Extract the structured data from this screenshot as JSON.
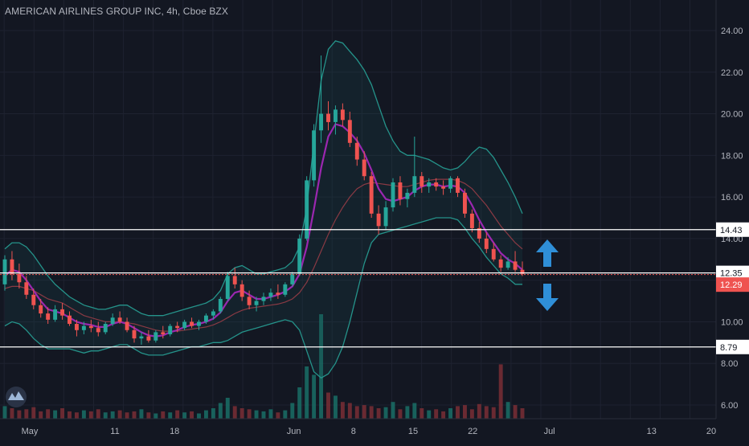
{
  "header": {
    "title": "AMERICAN AIRLINES GROUP INC, 4h, Cboe BZX"
  },
  "chart_data": {
    "type": "candlestick",
    "title": "AMERICAN AIRLINES GROUP INC, 4h, Cboe BZX",
    "ylim": [
      5.3,
      25.0
    ],
    "y_ticks": [
      "6.00",
      "8.00",
      "10.00",
      "12.00",
      "14.00",
      "16.00",
      "18.00",
      "20.00",
      "22.00",
      "24.00"
    ],
    "x_ticks": [
      {
        "label": "May",
        "day": 1
      },
      {
        "label": "11",
        "day": 11
      },
      {
        "label": "18",
        "day": 18
      },
      {
        "label": "Jun",
        "day": 32
      },
      {
        "label": "8",
        "day": 39
      },
      {
        "label": "15",
        "day": 46
      },
      {
        "label": "22",
        "day": 53
      },
      {
        "label": "Jul",
        "day": 62
      },
      {
        "label": "13",
        "day": 74
      },
      {
        "label": "20",
        "day": 81
      }
    ],
    "price_levels": [
      {
        "label": "14.43",
        "value": 14.43,
        "style": "solid"
      },
      {
        "label": "12.35",
        "value": 12.35,
        "style": "dashed"
      },
      {
        "label": "8.79",
        "value": 8.79,
        "style": "solid"
      }
    ],
    "last_price": {
      "label": "12.29",
      "value": 12.29
    },
    "candles": [
      [
        11.8,
        13.2,
        11.5,
        13.0
      ],
      [
        13.0,
        13.4,
        12.0,
        12.3
      ],
      [
        12.3,
        12.8,
        11.6,
        11.9
      ],
      [
        11.9,
        12.2,
        11.1,
        11.3
      ],
      [
        11.3,
        11.6,
        10.6,
        10.8
      ],
      [
        10.8,
        11.1,
        10.2,
        10.4
      ],
      [
        10.4,
        10.7,
        9.9,
        10.1
      ],
      [
        10.1,
        10.8,
        10.0,
        10.6
      ],
      [
        10.6,
        10.9,
        10.1,
        10.3
      ],
      [
        10.3,
        10.5,
        9.8,
        9.9
      ],
      [
        9.9,
        10.1,
        9.3,
        9.6
      ],
      [
        9.6,
        10.0,
        9.4,
        9.8
      ],
      [
        9.8,
        10.1,
        9.5,
        9.7
      ],
      [
        9.7,
        10.0,
        9.3,
        9.5
      ],
      [
        9.5,
        10.0,
        9.4,
        9.9
      ],
      [
        9.9,
        10.4,
        9.8,
        10.2
      ],
      [
        10.2,
        10.5,
        9.9,
        10.0
      ],
      [
        10.0,
        10.2,
        9.5,
        9.6
      ],
      [
        9.6,
        9.8,
        9.0,
        9.2
      ],
      [
        9.2,
        9.5,
        8.9,
        9.3
      ],
      [
        9.3,
        9.6,
        9.0,
        9.1
      ],
      [
        9.1,
        9.6,
        9.0,
        9.5
      ],
      [
        9.5,
        9.8,
        9.2,
        9.4
      ],
      [
        9.4,
        9.9,
        9.3,
        9.8
      ],
      [
        9.8,
        10.0,
        9.5,
        9.7
      ],
      [
        9.7,
        10.1,
        9.6,
        10.0
      ],
      [
        10.0,
        10.2,
        9.7,
        9.8
      ],
      [
        9.8,
        10.1,
        9.6,
        10.0
      ],
      [
        10.0,
        10.4,
        9.9,
        10.3
      ],
      [
        10.3,
        10.6,
        10.1,
        10.5
      ],
      [
        10.5,
        11.2,
        10.4,
        11.1
      ],
      [
        11.1,
        12.4,
        11.0,
        12.2
      ],
      [
        12.2,
        12.6,
        11.6,
        11.8
      ],
      [
        11.8,
        12.0,
        11.0,
        11.2
      ],
      [
        11.2,
        11.5,
        10.6,
        10.8
      ],
      [
        10.8,
        11.2,
        10.5,
        11.0
      ],
      [
        11.0,
        11.4,
        10.8,
        11.2
      ],
      [
        11.2,
        11.6,
        11.0,
        11.4
      ],
      [
        11.4,
        11.8,
        11.1,
        11.3
      ],
      [
        11.3,
        11.9,
        11.2,
        11.8
      ],
      [
        11.8,
        12.4,
        11.7,
        12.3
      ],
      [
        12.3,
        14.2,
        12.2,
        14.0
      ],
      [
        14.0,
        17.0,
        13.9,
        16.8
      ],
      [
        16.8,
        19.5,
        16.5,
        19.2
      ],
      [
        19.2,
        22.8,
        18.6,
        20.0
      ],
      [
        20.0,
        20.6,
        19.2,
        19.6
      ],
      [
        19.6,
        20.4,
        19.0,
        20.2
      ],
      [
        20.2,
        20.5,
        19.4,
        19.7
      ],
      [
        19.7,
        20.1,
        18.4,
        18.6
      ],
      [
        18.6,
        18.9,
        17.5,
        17.8
      ],
      [
        17.8,
        18.2,
        16.8,
        17.0
      ],
      [
        17.0,
        17.2,
        15.0,
        15.2
      ],
      [
        15.2,
        15.6,
        14.2,
        14.6
      ],
      [
        14.6,
        15.8,
        14.4,
        15.5
      ],
      [
        15.5,
        16.9,
        15.3,
        16.7
      ],
      [
        16.7,
        17.0,
        15.6,
        15.9
      ],
      [
        15.9,
        16.4,
        15.5,
        16.2
      ],
      [
        16.2,
        18.9,
        16.0,
        17.0
      ],
      [
        17.0,
        17.2,
        16.2,
        16.5
      ],
      [
        16.5,
        16.9,
        16.2,
        16.7
      ],
      [
        16.7,
        16.9,
        16.3,
        16.5
      ],
      [
        16.5,
        16.8,
        16.1,
        16.4
      ],
      [
        16.4,
        17.0,
        16.2,
        16.9
      ],
      [
        16.9,
        17.0,
        16.0,
        16.2
      ],
      [
        16.2,
        16.4,
        15.0,
        15.2
      ],
      [
        15.2,
        15.4,
        14.3,
        14.5
      ],
      [
        14.5,
        14.8,
        13.8,
        14.0
      ],
      [
        14.0,
        14.3,
        13.3,
        13.5
      ],
      [
        13.5,
        13.8,
        12.9,
        13.0
      ],
      [
        13.0,
        13.2,
        12.4,
        12.6
      ],
      [
        12.6,
        13.1,
        12.5,
        12.9
      ],
      [
        12.9,
        13.4,
        12.4,
        12.5
      ],
      [
        12.5,
        12.9,
        12.2,
        12.3
      ]
    ],
    "ma_fast": [
      12.2,
      12.5,
      12.4,
      12.0,
      11.5,
      11.0,
      10.6,
      10.5,
      10.4,
      10.2,
      10.0,
      9.9,
      9.85,
      9.75,
      9.75,
      9.9,
      10.0,
      9.9,
      9.7,
      9.5,
      9.35,
      9.3,
      9.35,
      9.5,
      9.6,
      9.75,
      9.85,
      9.9,
      10.0,
      10.15,
      10.45,
      11.0,
      11.4,
      11.5,
      11.3,
      11.1,
      11.1,
      11.2,
      11.3,
      11.45,
      11.7,
      12.3,
      13.6,
      15.4,
      17.4,
      18.9,
      19.5,
      19.4,
      19.1,
      18.7,
      18.1,
      17.3,
      16.4,
      15.9,
      15.8,
      15.9,
      16.0,
      16.3,
      16.5,
      16.6,
      16.6,
      16.5,
      16.55,
      16.5,
      16.2,
      15.6,
      14.9,
      14.3,
      13.8,
      13.3,
      13.0,
      12.8,
      12.5
    ],
    "ma_slow": [
      11.6,
      11.7,
      11.7,
      11.6,
      11.5,
      11.3,
      11.1,
      11.0,
      10.9,
      10.7,
      10.5,
      10.3,
      10.2,
      10.1,
      10.0,
      10.0,
      10.0,
      9.95,
      9.9,
      9.8,
      9.7,
      9.6,
      9.55,
      9.55,
      9.55,
      9.6,
      9.65,
      9.7,
      9.75,
      9.85,
      10.0,
      10.2,
      10.4,
      10.55,
      10.65,
      10.7,
      10.75,
      10.8,
      10.85,
      10.95,
      11.1,
      11.4,
      11.9,
      12.6,
      13.4,
      14.2,
      14.9,
      15.5,
      16.0,
      16.4,
      16.6,
      16.7,
      16.65,
      16.6,
      16.55,
      16.5,
      16.5,
      16.6,
      16.7,
      16.8,
      16.85,
      16.85,
      16.85,
      16.8,
      16.65,
      16.4,
      16.0,
      15.6,
      15.1,
      14.6,
      14.2,
      13.8,
      13.5
    ],
    "bb_upper": [
      13.5,
      13.8,
      13.8,
      13.6,
      13.2,
      12.7,
      12.2,
      11.8,
      11.5,
      11.2,
      11.0,
      10.8,
      10.7,
      10.6,
      10.6,
      10.7,
      10.8,
      10.8,
      10.6,
      10.4,
      10.3,
      10.3,
      10.3,
      10.4,
      10.5,
      10.6,
      10.7,
      10.8,
      10.9,
      11.1,
      11.5,
      12.3,
      12.6,
      12.7,
      12.5,
      12.3,
      12.3,
      12.4,
      12.5,
      12.6,
      12.9,
      13.6,
      15.5,
      18.6,
      21.6,
      23.1,
      23.5,
      23.4,
      23.0,
      22.6,
      22.1,
      21.4,
      20.4,
      19.4,
      18.7,
      18.2,
      18.0,
      18.0,
      17.9,
      17.8,
      17.6,
      17.4,
      17.3,
      17.4,
      17.7,
      18.1,
      18.4,
      18.3,
      17.9,
      17.3,
      16.7,
      16.0,
      15.2
    ],
    "bb_lower": [
      9.8,
      10.0,
      9.9,
      9.6,
      9.2,
      8.9,
      8.7,
      8.7,
      8.7,
      8.7,
      8.6,
      8.5,
      8.6,
      8.6,
      8.7,
      8.8,
      8.9,
      8.9,
      8.7,
      8.5,
      8.4,
      8.4,
      8.4,
      8.5,
      8.6,
      8.7,
      8.8,
      8.8,
      8.9,
      9.0,
      9.0,
      9.1,
      9.3,
      9.5,
      9.6,
      9.7,
      9.8,
      9.9,
      10.0,
      10.1,
      10.0,
      9.6,
      8.6,
      7.6,
      7.3,
      7.5,
      8.0,
      8.8,
      10.0,
      11.4,
      12.8,
      13.8,
      14.2,
      14.3,
      14.4,
      14.5,
      14.6,
      14.7,
      14.8,
      14.9,
      15.0,
      15.0,
      15.0,
      14.9,
      14.5,
      14.0,
      13.6,
      13.1,
      12.7,
      12.3,
      12.1,
      11.8,
      11.8
    ],
    "volume": [
      0.12,
      0.1,
      0.08,
      0.09,
      0.11,
      0.07,
      0.09,
      0.08,
      0.1,
      0.07,
      0.06,
      0.08,
      0.07,
      0.09,
      0.06,
      0.07,
      0.08,
      0.06,
      0.07,
      0.09,
      0.06,
      0.05,
      0.07,
      0.06,
      0.08,
      0.06,
      0.07,
      0.05,
      0.08,
      0.1,
      0.15,
      0.2,
      0.12,
      0.1,
      0.09,
      0.08,
      0.07,
      0.09,
      0.06,
      0.08,
      0.15,
      0.3,
      0.5,
      0.42,
      1.0,
      0.25,
      0.22,
      0.16,
      0.15,
      0.12,
      0.13,
      0.12,
      0.1,
      0.11,
      0.16,
      0.09,
      0.12,
      0.15,
      0.1,
      0.08,
      0.09,
      0.07,
      0.1,
      0.12,
      0.13,
      0.09,
      0.14,
      0.12,
      0.11,
      0.52,
      0.16,
      0.13,
      0.1
    ]
  }
}
